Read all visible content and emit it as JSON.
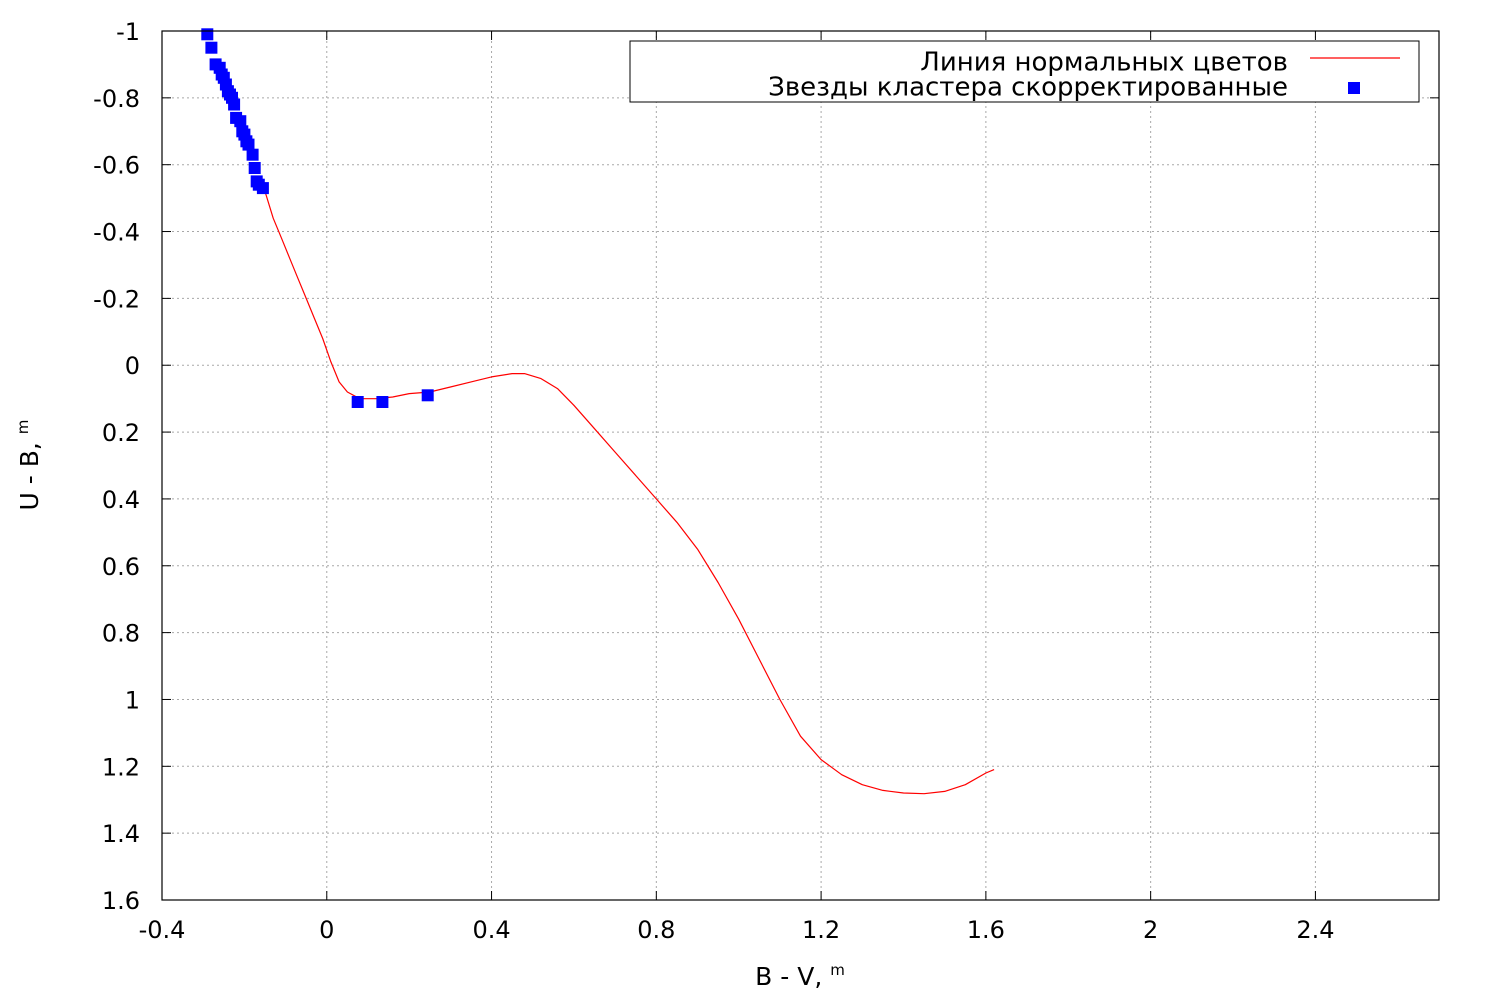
{
  "chart_data": {
    "type": "scatter",
    "title": "",
    "xlabel": "B - V, ",
    "xlabel_unit": "m",
    "ylabel": "U - B, ",
    "ylabel_unit": "m",
    "xlim": [
      -0.4,
      2.7
    ],
    "ylim": [
      -1.0,
      1.6
    ],
    "y_inverted": true,
    "xticks": [
      -0.4,
      0,
      0.4,
      0.8,
      1.2,
      1.6,
      2,
      2.4
    ],
    "xtick_labels": [
      "-0.4",
      "0",
      "0.4",
      "0.8",
      "1.2",
      "1.6",
      "2",
      "2.4"
    ],
    "yticks": [
      -1,
      -0.8,
      -0.6,
      -0.4,
      -0.2,
      0,
      0.2,
      0.4,
      0.6,
      0.8,
      1,
      1.2,
      1.4,
      1.6
    ],
    "ytick_labels": [
      "-1",
      "-0.8",
      "-0.6",
      "-0.4",
      "-0.2",
      "0",
      "0.2",
      "0.4",
      "0.6",
      "0.8",
      "1",
      "1.2",
      "1.4",
      "1.6"
    ],
    "grid": true,
    "legend_position": "top-right",
    "series": [
      {
        "name": "Линия нормальных цветов",
        "kind": "line",
        "color": "#ff0000",
        "x": [
          -0.15,
          -0.13,
          -0.11,
          -0.09,
          -0.07,
          -0.05,
          -0.03,
          -0.01,
          0.01,
          0.03,
          0.05,
          0.08,
          0.12,
          0.16,
          0.2,
          0.25,
          0.3,
          0.35,
          0.4,
          0.45,
          0.48,
          0.52,
          0.56,
          0.6,
          0.65,
          0.7,
          0.75,
          0.8,
          0.85,
          0.9,
          0.95,
          1.0,
          1.05,
          1.1,
          1.15,
          1.2,
          1.25,
          1.3,
          1.35,
          1.4,
          1.45,
          1.5,
          1.55,
          1.6,
          1.62
        ],
        "y": [
          -0.52,
          -0.44,
          -0.38,
          -0.32,
          -0.26,
          -0.2,
          -0.14,
          -0.08,
          -0.01,
          0.05,
          0.08,
          0.1,
          0.1,
          0.095,
          0.085,
          0.08,
          0.065,
          0.05,
          0.035,
          0.025,
          0.025,
          0.04,
          0.07,
          0.12,
          0.19,
          0.26,
          0.33,
          0.4,
          0.47,
          0.55,
          0.65,
          0.76,
          0.88,
          1.0,
          1.11,
          1.18,
          1.225,
          1.255,
          1.272,
          1.28,
          1.282,
          1.275,
          1.255,
          1.22,
          1.21
        ]
      },
      {
        "name": "Звезды кластера скорректированные",
        "kind": "points",
        "color": "#0000ff",
        "x": [
          -0.29,
          -0.28,
          -0.27,
          -0.26,
          -0.255,
          -0.25,
          -0.245,
          -0.24,
          -0.235,
          -0.23,
          -0.225,
          -0.22,
          -0.21,
          -0.205,
          -0.2,
          -0.195,
          -0.19,
          -0.18,
          -0.175,
          -0.17,
          -0.165,
          -0.155,
          0.075,
          0.135,
          0.245
        ],
        "y": [
          -0.99,
          -0.95,
          -0.9,
          -0.89,
          -0.87,
          -0.86,
          -0.84,
          -0.82,
          -0.81,
          -0.8,
          -0.78,
          -0.74,
          -0.73,
          -0.7,
          -0.69,
          -0.67,
          -0.66,
          -0.63,
          -0.59,
          -0.55,
          -0.54,
          -0.53,
          0.11,
          0.11,
          0.09
        ]
      }
    ]
  }
}
